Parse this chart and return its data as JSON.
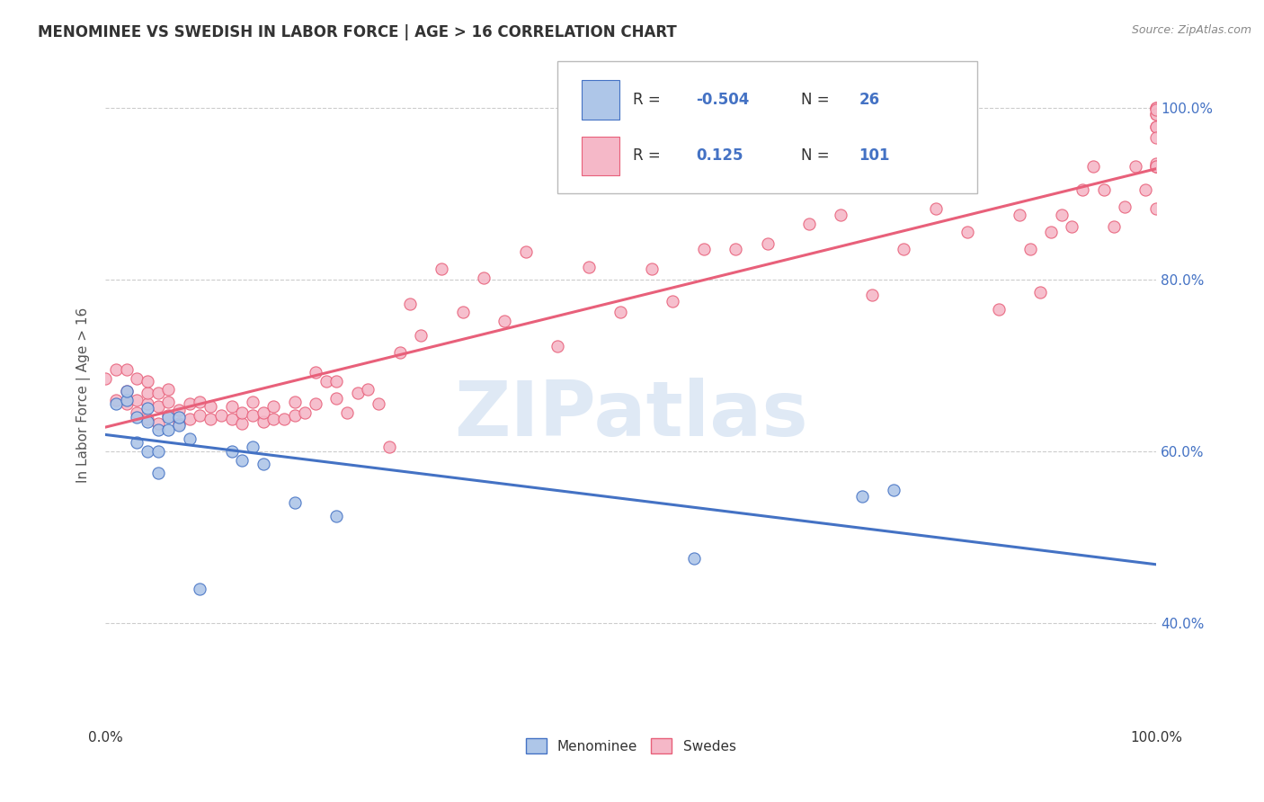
{
  "title": "MENOMINEE VS SWEDISH IN LABOR FORCE | AGE > 16 CORRELATION CHART",
  "source_text": "Source: ZipAtlas.com",
  "ylabel": "In Labor Force | Age > 16",
  "watermark": "ZIPatlas",
  "menominee_color": "#aec6e8",
  "swedes_color": "#f5b8c8",
  "menominee_line_color": "#4472c4",
  "swedes_line_color": "#e8607a",
  "background_color": "#ffffff",
  "grid_color": "#cccccc",
  "xmin": 0.0,
  "xmax": 1.0,
  "ymin": 0.28,
  "ymax": 1.05,
  "y_ticks": [
    0.4,
    0.6,
    0.8,
    1.0
  ],
  "y_tick_labels": [
    "40.0%",
    "60.0%",
    "80.0%",
    "100.0%"
  ],
  "menominee_x": [
    0.01,
    0.02,
    0.02,
    0.03,
    0.03,
    0.04,
    0.04,
    0.04,
    0.05,
    0.05,
    0.05,
    0.06,
    0.06,
    0.07,
    0.07,
    0.08,
    0.09,
    0.12,
    0.13,
    0.14,
    0.15,
    0.18,
    0.22,
    0.56,
    0.72,
    0.75
  ],
  "menominee_y": [
    0.655,
    0.66,
    0.67,
    0.61,
    0.64,
    0.6,
    0.635,
    0.65,
    0.575,
    0.6,
    0.625,
    0.625,
    0.64,
    0.63,
    0.64,
    0.615,
    0.44,
    0.6,
    0.59,
    0.605,
    0.585,
    0.54,
    0.525,
    0.475,
    0.548,
    0.555
  ],
  "swedes_x": [
    0.0,
    0.01,
    0.01,
    0.02,
    0.02,
    0.02,
    0.03,
    0.03,
    0.03,
    0.04,
    0.04,
    0.04,
    0.04,
    0.05,
    0.05,
    0.05,
    0.06,
    0.06,
    0.06,
    0.07,
    0.07,
    0.08,
    0.08,
    0.09,
    0.09,
    0.1,
    0.1,
    0.11,
    0.12,
    0.12,
    0.13,
    0.13,
    0.14,
    0.14,
    0.15,
    0.15,
    0.16,
    0.16,
    0.17,
    0.18,
    0.18,
    0.19,
    0.2,
    0.2,
    0.21,
    0.22,
    0.22,
    0.23,
    0.24,
    0.25,
    0.26,
    0.27,
    0.28,
    0.29,
    0.3,
    0.32,
    0.34,
    0.36,
    0.38,
    0.4,
    0.43,
    0.46,
    0.49,
    0.52,
    0.54,
    0.57,
    0.6,
    0.63,
    0.67,
    0.7,
    0.73,
    0.76,
    0.79,
    0.82,
    0.85,
    0.87,
    0.88,
    0.89,
    0.9,
    0.91,
    0.92,
    0.93,
    0.94,
    0.95,
    0.96,
    0.97,
    0.98,
    0.99,
    1.0,
    1.0,
    1.0,
    1.0,
    1.0,
    1.0,
    1.0,
    1.0,
    1.0,
    1.0,
    1.0,
    1.0,
    1.0
  ],
  "swedes_y": [
    0.685,
    0.66,
    0.695,
    0.655,
    0.67,
    0.695,
    0.645,
    0.66,
    0.685,
    0.638,
    0.655,
    0.668,
    0.682,
    0.632,
    0.652,
    0.668,
    0.642,
    0.658,
    0.672,
    0.632,
    0.648,
    0.638,
    0.655,
    0.642,
    0.658,
    0.638,
    0.652,
    0.642,
    0.638,
    0.652,
    0.632,
    0.645,
    0.642,
    0.658,
    0.635,
    0.645,
    0.638,
    0.652,
    0.638,
    0.642,
    0.658,
    0.645,
    0.692,
    0.655,
    0.682,
    0.662,
    0.682,
    0.645,
    0.668,
    0.672,
    0.655,
    0.605,
    0.715,
    0.772,
    0.735,
    0.812,
    0.762,
    0.802,
    0.752,
    0.832,
    0.722,
    0.815,
    0.762,
    0.812,
    0.775,
    0.835,
    0.835,
    0.842,
    0.865,
    0.875,
    0.782,
    0.835,
    0.882,
    0.855,
    0.765,
    0.875,
    0.835,
    0.785,
    0.855,
    0.875,
    0.862,
    0.905,
    0.932,
    0.905,
    0.862,
    0.885,
    0.932,
    0.905,
    0.882,
    0.932,
    0.932,
    0.935,
    0.932,
    0.978,
    0.992,
    1.0,
    0.978,
    1.0,
    0.992,
    0.965,
    0.998
  ]
}
